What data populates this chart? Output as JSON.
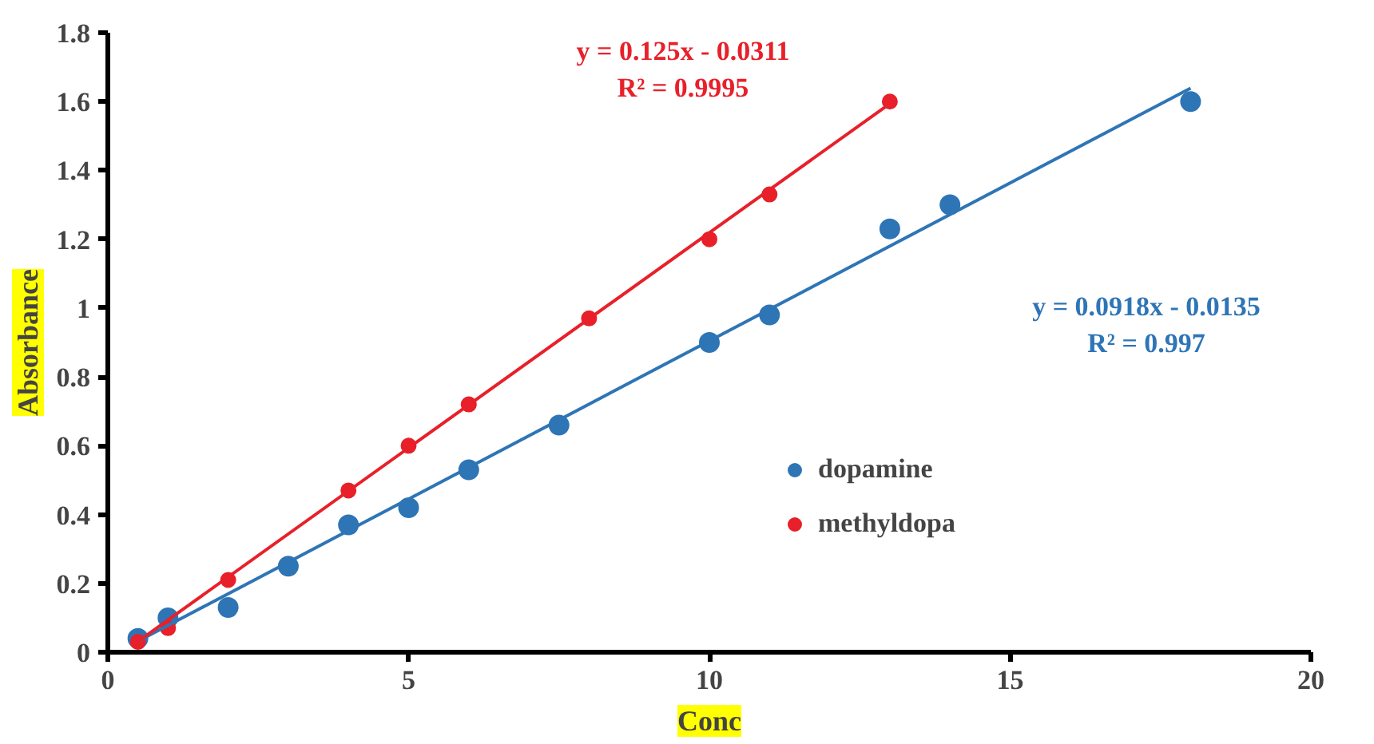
{
  "chart_data": {
    "type": "scatter",
    "xlabel": "Conc",
    "ylabel": "Absorbance",
    "xlim": [
      0,
      20
    ],
    "xticks": [
      0,
      5,
      10,
      15,
      20
    ],
    "ylim": [
      0,
      1.8
    ],
    "yticks": [
      0,
      0.2,
      0.4,
      0.6,
      0.8,
      1,
      1.2,
      1.4,
      1.6,
      1.8
    ],
    "grid": false,
    "legend": "right",
    "marker": "circle",
    "series": [
      {
        "name": "dopamine",
        "color": "#2e75b6",
        "x": [
          0.5,
          1,
          2,
          3,
          4,
          5,
          6,
          7.5,
          10,
          11,
          13,
          14,
          18
        ],
        "values": [
          0.04,
          0.1,
          0.13,
          0.25,
          0.37,
          0.42,
          0.53,
          0.66,
          0.9,
          0.98,
          1.23,
          1.3,
          1.6
        ]
      },
      {
        "name": "methyldopa",
        "color": "#e8202a",
        "x": [
          0.5,
          1,
          2,
          4,
          5,
          6,
          8,
          10,
          11,
          13
        ],
        "values": [
          0.03,
          0.07,
          0.21,
          0.47,
          0.6,
          0.72,
          0.97,
          1.2,
          1.33,
          1.6
        ]
      },
      {
        "color": "#2e75b6",
        "type": "line",
        "marker": "none",
        "x": [
          0.5,
          18
        ],
        "values": [
          0.032,
          1.639
        ]
      },
      {
        "color": "#e8202a",
        "type": "line",
        "marker": "none",
        "x": [
          0.5,
          13
        ],
        "values": [
          0.031,
          1.594
        ]
      }
    ],
    "annotations": [
      "y = 0.0918x - 0.0135\nR² = 0.997",
      "y = 0.125x - 0.0311\nR² = 0.9995"
    ]
  }
}
